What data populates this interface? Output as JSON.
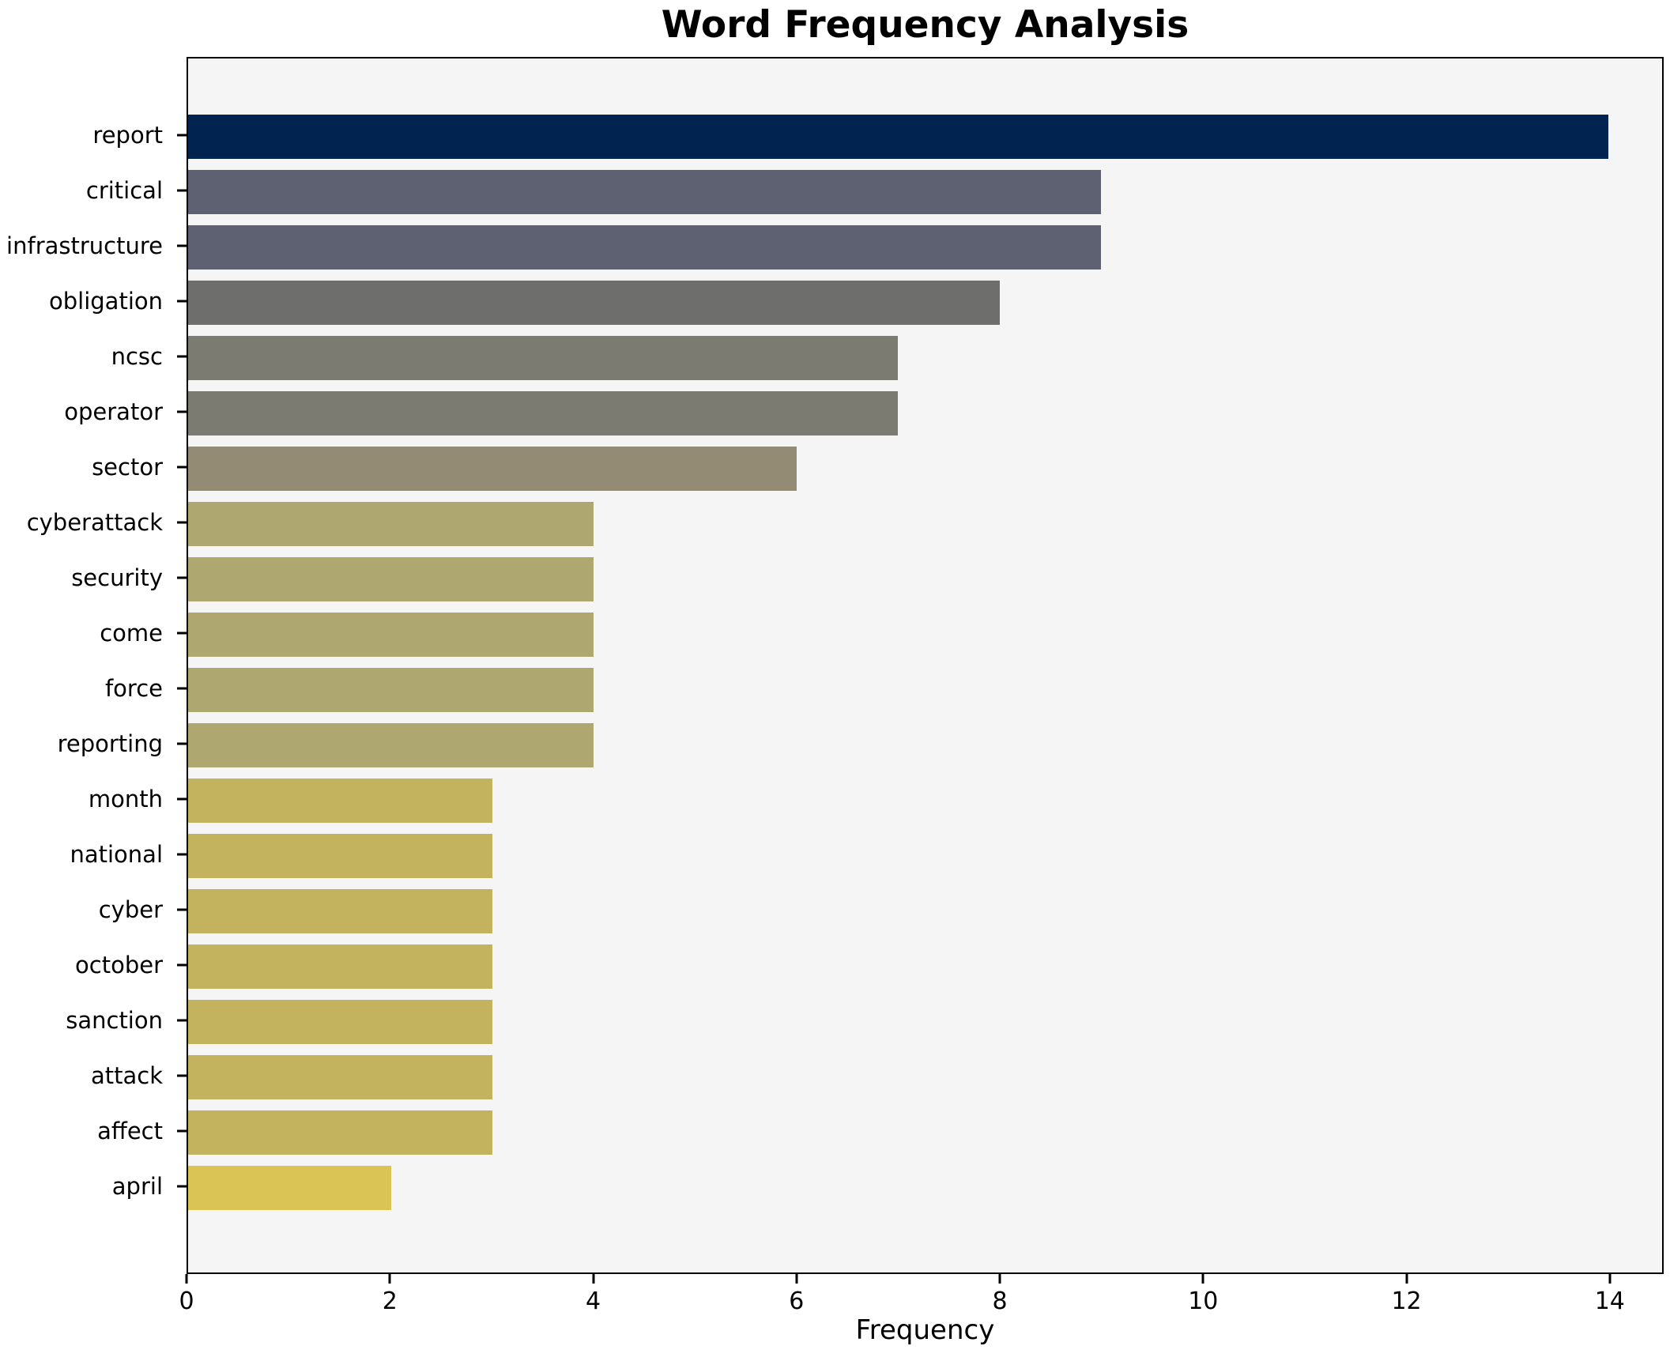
{
  "title": "Word Frequency Analysis",
  "chart_data": {
    "type": "bar",
    "orientation": "horizontal",
    "title": "Word Frequency Analysis",
    "xlabel": "Frequency",
    "ylabel": "",
    "categories": [
      "report",
      "critical",
      "infrastructure",
      "obligation",
      "ncsc",
      "operator",
      "sector",
      "cyberattack",
      "security",
      "come",
      "force",
      "reporting",
      "month",
      "national",
      "cyber",
      "october",
      "sanction",
      "attack",
      "affect",
      "april"
    ],
    "values": [
      14,
      9,
      9,
      8,
      7,
      7,
      6,
      4,
      4,
      4,
      4,
      4,
      3,
      3,
      3,
      3,
      3,
      3,
      3,
      2
    ],
    "bar_colors": [
      "#00244f",
      "#5d6171",
      "#5d6171",
      "#6e6e6d",
      "#7c7b71",
      "#7c7b71",
      "#938b73",
      "#aea76f",
      "#aea76f",
      "#aea76f",
      "#aea76f",
      "#aea76f",
      "#c3b35e",
      "#c3b35e",
      "#c3b35e",
      "#c3b35e",
      "#c3b35e",
      "#c3b35e",
      "#c3b35e",
      "#d9c455"
    ],
    "xticks": [
      0,
      2,
      4,
      6,
      8,
      10,
      12,
      14
    ],
    "xlim": [
      0,
      14.53
    ],
    "grid": false,
    "legend": false,
    "plot_background": "#f5f5f6",
    "figure_background": "#ffffff",
    "spine_color": "#000000",
    "text_color": "#000000"
  }
}
